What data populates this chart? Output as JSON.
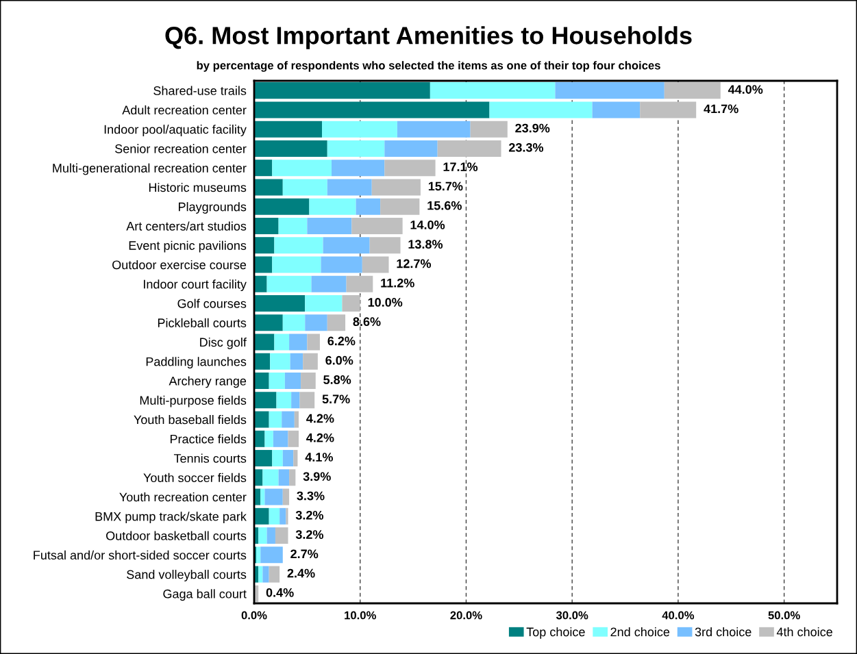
{
  "chart_data": {
    "type": "bar",
    "orientation": "horizontal",
    "stacked": true,
    "title": "Q6. Most Important Amenities to Households",
    "subtitle": "by percentage of respondents who selected the items as one of their top four choices",
    "categories": [
      "Shared-use trails",
      "Adult recreation center",
      "Indoor pool/aquatic facility",
      "Senior recreation center",
      "Multi-generational recreation center",
      "Historic museums",
      "Playgrounds",
      "Art centers/art studios",
      "Event picnic pavilions",
      "Outdoor exercise course",
      "Indoor court facility",
      "Golf courses",
      "Pickleball courts",
      "Disc golf",
      "Paddling launches",
      "Archery range",
      "Multi-purpose fields",
      "Youth baseball fields",
      "Practice fields",
      "Tennis courts",
      "Youth soccer fields",
      "Youth recreation center",
      "BMX pump track/skate park",
      "Outdoor basketball courts",
      "Futsal and/or short-sided soccer courts",
      "Sand volleyball courts",
      "Gaga ball court"
    ],
    "series": [
      {
        "name": "Top choice",
        "color": "#008080",
        "values": [
          16.6,
          22.2,
          6.4,
          6.9,
          1.7,
          2.7,
          5.2,
          2.3,
          1.9,
          1.7,
          1.2,
          4.8,
          2.7,
          1.9,
          1.5,
          1.4,
          2.1,
          1.4,
          1.0,
          1.7,
          0.8,
          0.6,
          1.4,
          0.4,
          0.2,
          0.4,
          0
        ]
      },
      {
        "name": "2nd choice",
        "color": "#80ffff",
        "values": [
          11.8,
          9.7,
          7.1,
          5.4,
          5.6,
          4.2,
          4.4,
          2.7,
          4.6,
          4.6,
          4.2,
          3.5,
          2.1,
          1.4,
          1.9,
          1.5,
          1.4,
          1.2,
          0.8,
          1.0,
          1.5,
          0.4,
          1.0,
          0.8,
          0.4,
          0.4,
          0
        ]
      },
      {
        "name": "3rd choice",
        "color": "#77bfff",
        "values": [
          10.3,
          4.5,
          6.9,
          5.0,
          5.0,
          4.2,
          2.3,
          4.2,
          4.4,
          3.9,
          3.3,
          0,
          2.1,
          1.7,
          1.2,
          1.5,
          0.8,
          1.2,
          1.4,
          1.0,
          1.0,
          1.7,
          0.6,
          0.8,
          2.1,
          0.6,
          0
        ]
      },
      {
        "name": "4th choice",
        "color": "#bfbfbf",
        "values": [
          5.3,
          5.3,
          3.5,
          6.0,
          4.8,
          4.6,
          3.7,
          4.8,
          2.9,
          2.5,
          2.5,
          1.7,
          1.7,
          1.2,
          1.4,
          1.4,
          1.4,
          0.4,
          1.0,
          0.4,
          0.6,
          0.6,
          0.2,
          1.2,
          0,
          1.0,
          0.4
        ]
      }
    ],
    "totals": [
      "44.0%",
      "41.7%",
      "23.9%",
      "23.3%",
      "17.1%",
      "15.7%",
      "15.6%",
      "14.0%",
      "13.8%",
      "12.7%",
      "11.2%",
      "10.0%",
      "8.6%",
      "6.2%",
      "6.0%",
      "5.8%",
      "5.7%",
      "4.2%",
      "4.2%",
      "4.1%",
      "3.9%",
      "3.3%",
      "3.2%",
      "3.2%",
      "2.7%",
      "2.4%",
      "0.4%"
    ],
    "xlim": [
      0,
      55
    ],
    "xticks": [
      {
        "value": 0,
        "label": "0.0%"
      },
      {
        "value": 10,
        "label": "10.0%"
      },
      {
        "value": 20,
        "label": "20.0%"
      },
      {
        "value": 30,
        "label": "30.0%"
      },
      {
        "value": 40,
        "label": "40.0%"
      },
      {
        "value": 50,
        "label": "50.0%"
      }
    ],
    "grid": "x",
    "legend": "bottom right"
  }
}
